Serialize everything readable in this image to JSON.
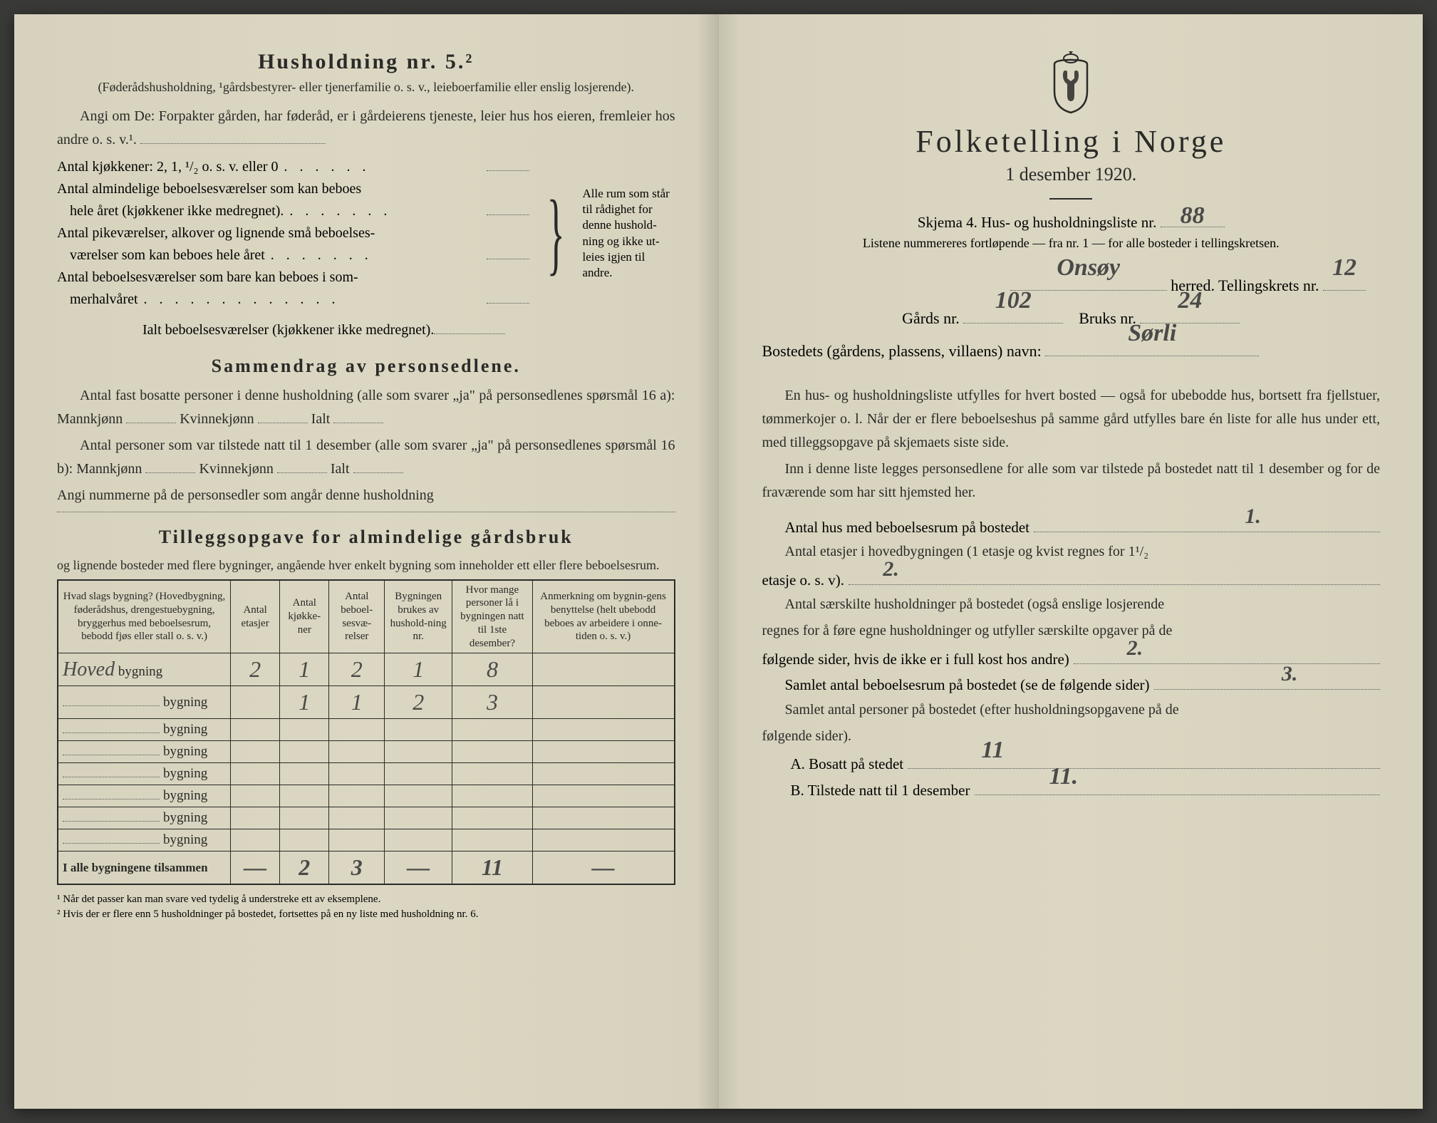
{
  "colors": {
    "paper": "#d9d5c0",
    "ink": "#2a2a28",
    "handwriting": "#4a4a48",
    "dotline": "#555555",
    "border": "#2a2a28"
  },
  "typography": {
    "title_size_pt": 44,
    "section_title_size_pt": 26,
    "body_size_pt": 20,
    "table_size_pt": 15,
    "handwriting_size_pt": 34
  },
  "left": {
    "hh_title": "Husholdning nr. 5.²",
    "hh_subtitle": "(Føderådshusholdning, ¹gårdsbestyrer- eller tjenerfamilie o. s. v., leieboerfamilie eller enslig losjerende).",
    "angi_line": "Angi om De: Forpakter gården, har føderåd, er i gårdeierens tjeneste, leier hus hos eieren, fremleier hos andre o. s. v.¹.",
    "kjokkener_label": "Antal kjøkkener: 2, 1, ¹/₂ o. s. v. eller 0",
    "alm_label_1": "Antal almindelige beboelsesværelser som kan beboes",
    "alm_label_2": "hele året (kjøkkener ikke medregnet).",
    "pike_label_1": "Antal pikeværelser, alkover og lignende små beboelses-",
    "pike_label_2": "værelser som kan beboes hele året",
    "sommer_label_1": "Antal beboelsesværelser som bare kan beboes i som-",
    "sommer_label_2": "merhalvåret",
    "ialt_label": "Ialt beboelsesværelser (kjøkkener ikke medregnet).",
    "brace_text": "Alle rum som står til rådighet for denne hushold-ning og ikke ut-leies igjen til andre.",
    "section_sammendrag": "Sammendrag av personsedlene.",
    "sammendrag_p1": "Antal fast bosatte personer i denne husholdning (alle som svarer „ja\" på personsedlenes spørsmål 16 a): Mannkjønn",
    "kvinnekjonn": "Kvinnekjønn",
    "ialt": "Ialt",
    "sammendrag_p2": "Antal personer som var tilstede natt til 1 desember (alle som svarer „ja\" på personsedlenes spørsmål 16 b): Mannkjønn",
    "angi_nummerne": "Angi nummerne på de personsedler som angår denne husholdning",
    "section_tillegg": "Tilleggsopgave for almindelige gårdsbruk",
    "tillegg_sub": "og lignende bosteder med flere bygninger, angående hver enkelt bygning som inneholder ett eller flere beboelsesrum.",
    "table": {
      "headers": [
        "Hvad slags bygning?\n(Hovedbygning, føderådshus, drengestuebygning, bryggerhus med beboelsesrum, bebodd fjøs eller stall o. s. v.)",
        "Antal etasjer",
        "Antal kjøkke-ner",
        "Antal beboel-sesvæ-relser",
        "Bygningen brukes av hushold-ning nr.",
        "Hvor mange personer lå i bygningen natt til 1ste desember?",
        "Anmerkning om bygnin-gens benyttelse (helt ubebodd beboes av arbeidere i onne-tiden o. s. v.)"
      ],
      "row_suffix": "bygning",
      "rows": [
        {
          "label": "Hoved",
          "cells": [
            "2",
            "1",
            "2",
            "1",
            "8",
            ""
          ]
        },
        {
          "label": "",
          "cells": [
            "",
            "1",
            "1",
            "2",
            "3",
            ""
          ]
        },
        {
          "label": "",
          "cells": [
            "",
            "",
            "",
            "",
            "",
            ""
          ]
        },
        {
          "label": "",
          "cells": [
            "",
            "",
            "",
            "",
            "",
            ""
          ]
        },
        {
          "label": "",
          "cells": [
            "",
            "",
            "",
            "",
            "",
            ""
          ]
        },
        {
          "label": "",
          "cells": [
            "",
            "",
            "",
            "",
            "",
            ""
          ]
        },
        {
          "label": "",
          "cells": [
            "",
            "",
            "",
            "",
            "",
            ""
          ]
        },
        {
          "label": "",
          "cells": [
            "",
            "",
            "",
            "",
            "",
            ""
          ]
        }
      ],
      "total_label": "I alle bygningene tilsammen",
      "total_cells": [
        "—",
        "2",
        "3",
        "—",
        "11",
        "—"
      ]
    },
    "footnote1": "¹  Når det passer kan man svare ved tydelig å understreke ett av eksemplene.",
    "footnote2": "²  Hvis der er flere enn 5 husholdninger på bostedet, fortsettes på en ny liste med husholdning nr. 6."
  },
  "right": {
    "title": "Folketelling i Norge",
    "date": "1 desember 1920.",
    "skjema_label": "Skjema 4.  Hus- og husholdningsliste nr.",
    "skjema_nr": "88",
    "listene_note": "Listene nummereres fortløpende — fra nr. 1 — for alle bosteder i tellingskretsen.",
    "herred_value": "Onsøy",
    "herred_suffix": "herred.   Tellingskrets nr.",
    "tellingskrets_nr": "12",
    "gards_label": "Gårds nr.",
    "gards_nr": "102",
    "bruks_label": "Bruks nr.",
    "bruks_nr": "24",
    "bostedets_label": "Bostedets (gårdens, plassens, villaens) navn:",
    "bostedets_navn": "Sørli",
    "para1": "En hus- og husholdningsliste utfylles for hvert bosted — også for ubebodde hus, bortsett fra fjellstuer, tømmerkojer o. l.  Når der er flere beboelseshus på samme gård utfylles bare én liste for alle hus under ett, med tilleggsopgave på skjemaets siste side.",
    "para2": "Inn i denne liste legges personsedlene for alle som var tilstede på bostedet natt til 1 desember og for de fraværende som har sitt hjemsted her.",
    "q1_label": "Antal hus med beboelsesrum på bostedet",
    "q1_value": "1.",
    "q2_label_a": "Antal etasjer i hovedbygningen (1 etasje og kvist regnes for 1¹/₂",
    "q2_label_b": "etasje o. s. v).",
    "q2_value": "2.",
    "q3_label_a": "Antal særskilte husholdninger på bostedet (også enslige losjerende",
    "q3_label_b": "regnes for å føre egne husholdninger og utfyller særskilte opgaver på de",
    "q3_label_c": "følgende sider, hvis de ikke er i full kost hos andre)",
    "q3_value": "2.",
    "q4_label": "Samlet antal beboelsesrum på bostedet (se de følgende sider)",
    "q4_value": "3.",
    "q5_label_a": "Samlet antal personer på bostedet (efter husholdningsopgavene på de",
    "q5_label_b": "følgende sider).",
    "qA_label": "A.  Bosatt på stedet",
    "qA_value": "11",
    "qB_label": "B.  Tilstede natt til 1 desember",
    "qB_value": "11."
  }
}
